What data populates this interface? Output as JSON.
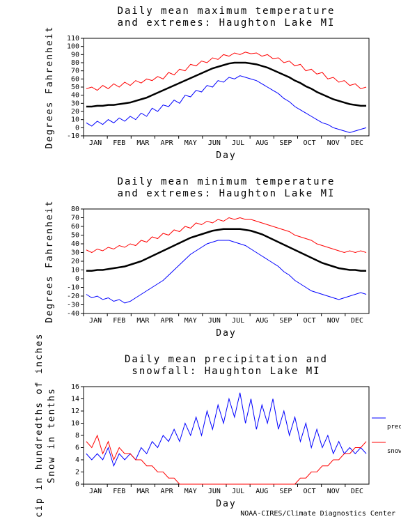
{
  "months": [
    "JAN",
    "FEB",
    "MAR",
    "APR",
    "MAY",
    "JUN",
    "JUL",
    "AUG",
    "SEP",
    "OCT",
    "NOV",
    "DEC"
  ],
  "footer_text": "NOAA-CIRES/Climate Diagnostics Center",
  "chart1": {
    "title_line1": "Daily mean maximum temperature",
    "title_line2": "and extremes: Haughton Lake MI",
    "ylabel": "Degrees Fahrenheit",
    "xlabel": "Day",
    "ylim": [
      -10,
      110
    ],
    "ytick_step": 10,
    "background_color": "#ffffff",
    "border_color": "#000000",
    "colors": {
      "mean": "#000000",
      "max": "#ff0000",
      "min": "#0000ff"
    },
    "line_width_mean": 2.5,
    "line_width_extreme": 1,
    "mean": [
      26,
      26,
      27,
      27,
      28,
      28,
      29,
      30,
      31,
      33,
      35,
      37,
      40,
      43,
      46,
      49,
      52,
      55,
      58,
      61,
      64,
      67,
      70,
      73,
      75,
      77,
      79,
      80,
      80,
      80,
      79,
      78,
      76,
      74,
      71,
      68,
      65,
      62,
      58,
      55,
      51,
      48,
      44,
      41,
      38,
      35,
      33,
      31,
      29,
      28,
      27,
      27
    ],
    "max": [
      48,
      50,
      46,
      52,
      48,
      54,
      50,
      56,
      52,
      58,
      55,
      60,
      58,
      63,
      60,
      68,
      65,
      72,
      70,
      78,
      76,
      82,
      80,
      86,
      84,
      90,
      88,
      92,
      90,
      93,
      91,
      92,
      88,
      90,
      85,
      86,
      80,
      82,
      76,
      78,
      70,
      72,
      66,
      68,
      60,
      62,
      56,
      58,
      52,
      54,
      48,
      50
    ],
    "min": [
      6,
      2,
      8,
      4,
      10,
      6,
      12,
      8,
      14,
      10,
      18,
      14,
      24,
      20,
      28,
      26,
      34,
      30,
      40,
      38,
      46,
      44,
      52,
      50,
      58,
      56,
      62,
      60,
      64,
      62,
      60,
      58,
      54,
      50,
      46,
      42,
      36,
      32,
      26,
      22,
      18,
      14,
      10,
      6,
      4,
      0,
      -2,
      -4,
      -6,
      -4,
      -2,
      0
    ]
  },
  "chart2": {
    "title_line1": "Daily mean minimum temperature",
    "title_line2": "and extremes: Haughton Lake MI",
    "ylabel": "Degrees Fahrenheit",
    "xlabel": "Day",
    "ylim": [
      -40,
      80
    ],
    "ytick_step": 10,
    "background_color": "#ffffff",
    "border_color": "#000000",
    "colors": {
      "mean": "#000000",
      "max": "#ff0000",
      "min": "#0000ff"
    },
    "line_width_mean": 2.5,
    "line_width_extreme": 1,
    "mean": [
      9,
      9,
      10,
      10,
      11,
      12,
      13,
      14,
      16,
      18,
      20,
      23,
      26,
      29,
      32,
      35,
      38,
      41,
      44,
      47,
      49,
      51,
      53,
      55,
      56,
      57,
      57,
      57,
      57,
      56,
      55,
      53,
      51,
      48,
      45,
      42,
      39,
      36,
      33,
      30,
      27,
      24,
      21,
      18,
      16,
      14,
      12,
      11,
      10,
      10,
      9,
      9
    ],
    "max": [
      33,
      30,
      34,
      32,
      36,
      34,
      38,
      36,
      40,
      38,
      44,
      42,
      48,
      46,
      52,
      50,
      56,
      54,
      60,
      58,
      64,
      62,
      66,
      64,
      68,
      66,
      70,
      68,
      70,
      68,
      68,
      66,
      64,
      62,
      60,
      58,
      56,
      54,
      50,
      48,
      46,
      44,
      40,
      38,
      36,
      34,
      32,
      30,
      32,
      30,
      32,
      30
    ],
    "min": [
      -18,
      -22,
      -20,
      -24,
      -22,
      -26,
      -24,
      -28,
      -26,
      -22,
      -18,
      -14,
      -10,
      -6,
      -2,
      4,
      10,
      16,
      22,
      28,
      32,
      36,
      40,
      42,
      44,
      44,
      44,
      42,
      40,
      38,
      34,
      30,
      26,
      22,
      18,
      14,
      8,
      4,
      -2,
      -6,
      -10,
      -14,
      -16,
      -18,
      -20,
      -22,
      -24,
      -22,
      -20,
      -18,
      -16,
      -18
    ]
  },
  "chart3": {
    "title_line1": "Daily mean precipitation and",
    "title_line2": "snowfall: Haughton Lake MI",
    "ylabel_line1": "Precip in hundredths of inches",
    "ylabel_line2": "Snow in tenths",
    "xlabel": "Day",
    "ylim": [
      0,
      16
    ],
    "ytick_step": 2,
    "background_color": "#ffffff",
    "border_color": "#000000",
    "colors": {
      "precip": "#0000ff",
      "snow": "#ff0000"
    },
    "legend": {
      "precip": "precip",
      "snow": "snow"
    },
    "line_width": 1,
    "precip": [
      5,
      4,
      5,
      4,
      6,
      3,
      5,
      4,
      5,
      4,
      6,
      5,
      7,
      6,
      8,
      7,
      9,
      7,
      10,
      8,
      11,
      8,
      12,
      9,
      13,
      10,
      14,
      11,
      15,
      10,
      14,
      9,
      13,
      10,
      14,
      9,
      12,
      8,
      11,
      7,
      10,
      6,
      9,
      6,
      8,
      5,
      7,
      5,
      6,
      5,
      6,
      5
    ],
    "snow": [
      7,
      6,
      8,
      5,
      7,
      4,
      6,
      5,
      5,
      4,
      4,
      3,
      3,
      2,
      2,
      1,
      1,
      0,
      0,
      0,
      0,
      0,
      0,
      0,
      0,
      0,
      0,
      0,
      0,
      0,
      0,
      0,
      0,
      0,
      0,
      0,
      0,
      0,
      0,
      1,
      1,
      2,
      2,
      3,
      3,
      4,
      4,
      5,
      5,
      6,
      6,
      7
    ]
  }
}
